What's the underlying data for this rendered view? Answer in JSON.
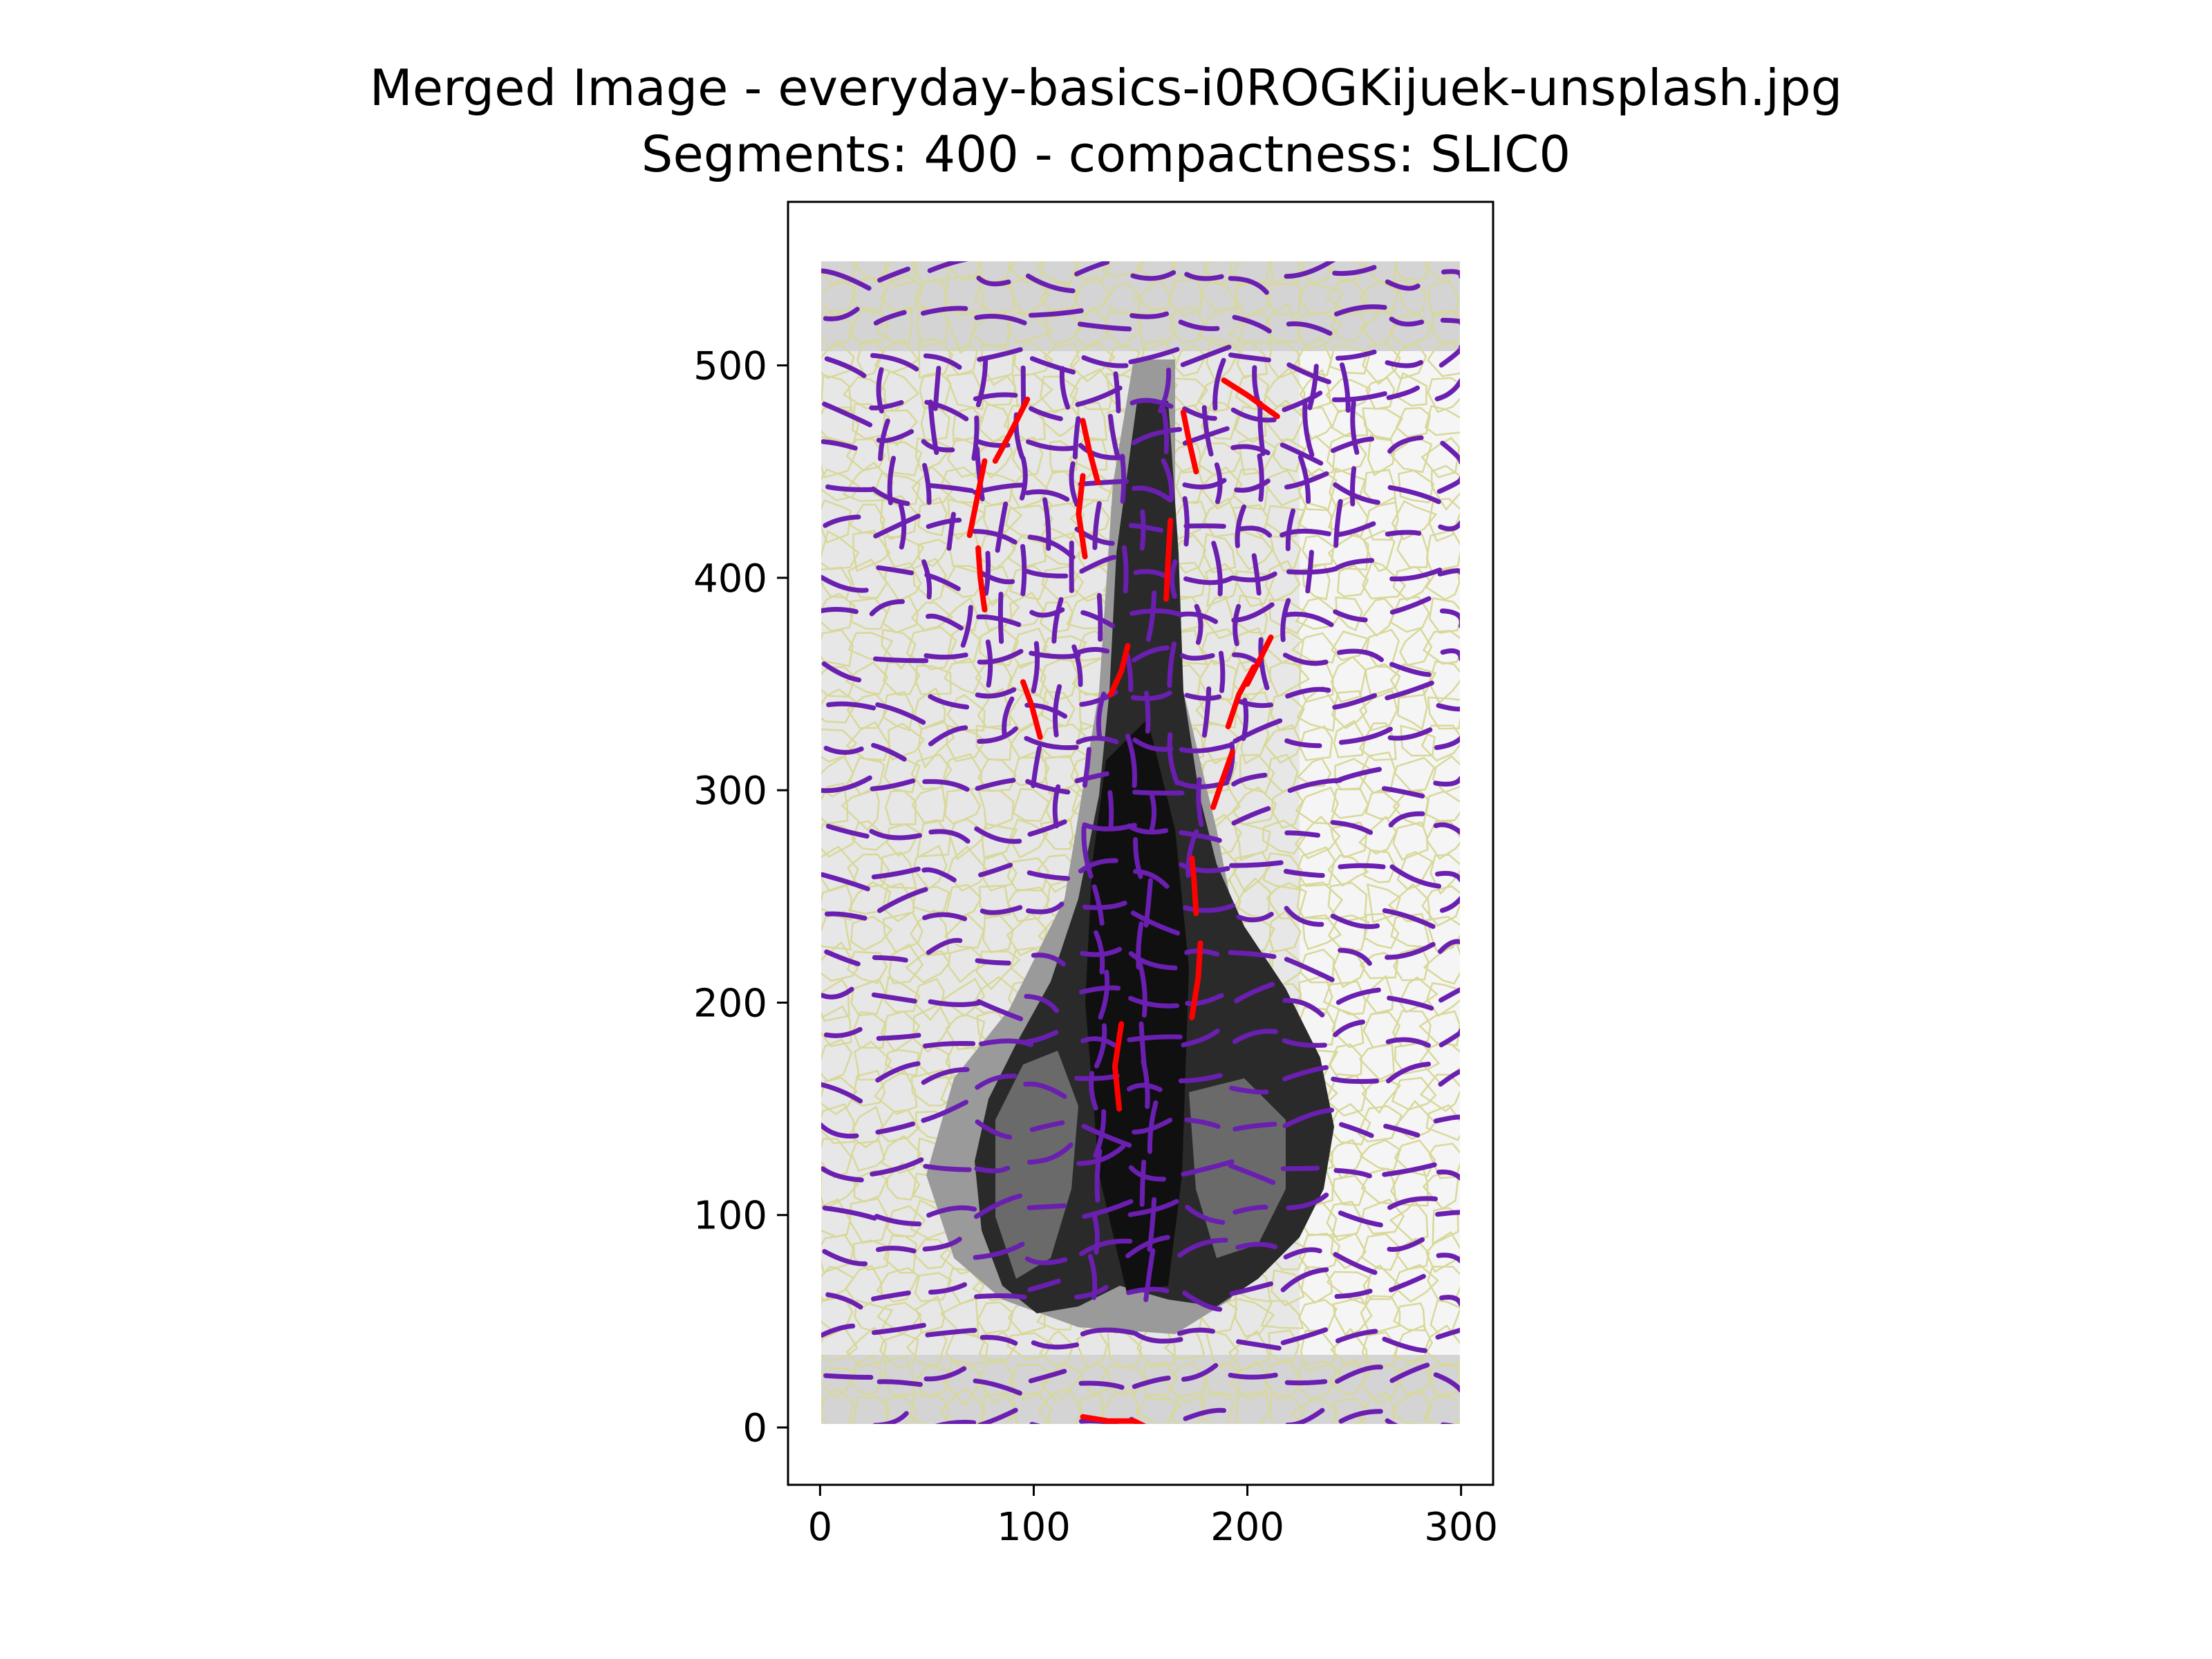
{
  "chart_data": {
    "type": "image",
    "title_lines": [
      "Merged Image - everyday-basics-i0ROGKijuek-unsplash.jpg",
      "Segments: 400 - compactness: SLIC0"
    ],
    "xlabel": "",
    "ylabel": "",
    "image_extent": {
      "x": [
        0,
        300
      ],
      "y": [
        0,
        546
      ]
    },
    "xlim": [
      -15,
      315
    ],
    "ylim": [
      577,
      -27
    ],
    "x_ticks": [
      0,
      100,
      200,
      300
    ],
    "y_ticks": [
      0,
      100,
      200,
      300,
      400,
      500
    ],
    "grid": false,
    "legend": "none",
    "colors": {
      "background": "#c9c9c9",
      "bottle": "#2a2a2a",
      "bottle_highlight": "#6a6a6a",
      "segment_boundary": "#d8d89a",
      "merge_line": "#6a1fb0",
      "highlight_line": "#ff0000"
    },
    "highlight_segments": [
      [
        [
          123,
          5
        ],
        [
          135,
          3
        ],
        [
          147,
          3
        ],
        [
          153,
          0
        ]
      ],
      [
        [
          140,
          150
        ],
        [
          138,
          170
        ],
        [
          141,
          190
        ]
      ],
      [
        [
          174,
          193
        ],
        [
          177,
          212
        ],
        [
          178,
          228
        ]
      ],
      [
        [
          176,
          242
        ],
        [
          175,
          258
        ],
        [
          174,
          268
        ]
      ],
      [
        [
          184,
          292
        ],
        [
          188,
          304
        ],
        [
          193,
          318
        ]
      ],
      [
        [
          103,
          325
        ],
        [
          99,
          340
        ],
        [
          95,
          351
        ]
      ],
      [
        [
          191,
          330
        ],
        [
          196,
          345
        ],
        [
          203,
          358
        ]
      ],
      [
        [
          136,
          345
        ],
        [
          141,
          356
        ],
        [
          144,
          368
        ]
      ],
      [
        [
          200,
          350
        ],
        [
          206,
          362
        ],
        [
          211,
          372
        ]
      ],
      [
        [
          77,
          385
        ],
        [
          75,
          400
        ],
        [
          74,
          414
        ]
      ],
      [
        [
          124,
          410
        ],
        [
          121,
          430
        ],
        [
          123,
          448
        ]
      ],
      [
        [
          162,
          390
        ],
        [
          163,
          410
        ],
        [
          164,
          427
        ]
      ],
      [
        [
          70,
          420
        ],
        [
          74,
          440
        ],
        [
          77,
          455
        ]
      ],
      [
        [
          130,
          445
        ],
        [
          126,
          460
        ],
        [
          123,
          474
        ]
      ],
      [
        [
          176,
          450
        ],
        [
          173,
          463
        ],
        [
          170,
          478
        ]
      ],
      [
        [
          82,
          455
        ],
        [
          89,
          468
        ],
        [
          97,
          484
        ]
      ],
      [
        [
          189,
          493
        ],
        [
          200,
          486
        ],
        [
          214,
          476
        ]
      ]
    ]
  }
}
